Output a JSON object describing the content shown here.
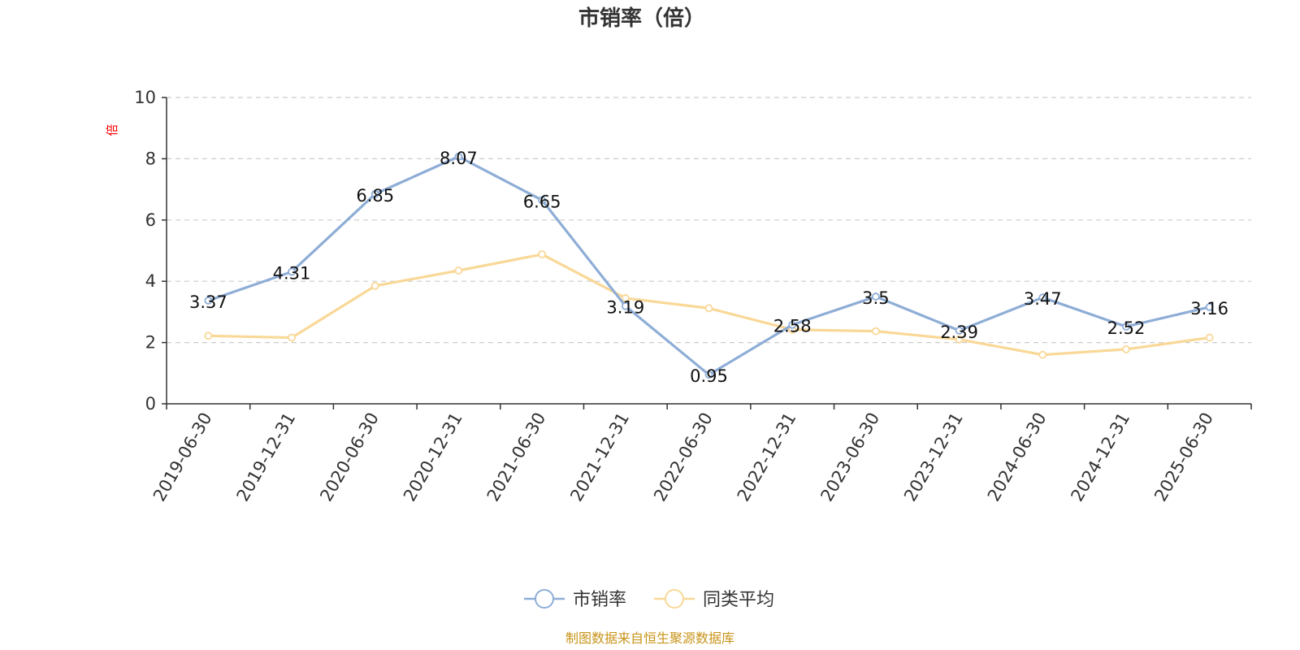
{
  "chart_data": {
    "type": "line",
    "title": "市销率（倍）",
    "y_unit": "倍",
    "xlabel": "",
    "ylabel": "",
    "ylim": [
      0,
      10
    ],
    "y_ticks": [
      0,
      2,
      4,
      6,
      8,
      10
    ],
    "grid": "horizontal dashed",
    "legend_position": "bottom-center",
    "categories": [
      "2019-06-30",
      "2019-12-31",
      "2020-06-30",
      "2020-12-31",
      "2021-06-30",
      "2021-12-31",
      "2022-06-30",
      "2022-12-31",
      "2023-06-30",
      "2023-12-31",
      "2024-06-30",
      "2024-12-31",
      "2025-06-30"
    ],
    "series": [
      {
        "name": "市销率",
        "color": "#8eadd6",
        "show_labels": true,
        "values": [
          3.37,
          4.31,
          6.85,
          8.07,
          6.65,
          3.19,
          0.95,
          2.58,
          3.5,
          2.39,
          3.47,
          2.52,
          3.16
        ]
      },
      {
        "name": "同类平均",
        "color": "#f9d897",
        "show_labels": false,
        "values": [
          2.22,
          2.16,
          3.85,
          4.35,
          4.88,
          3.45,
          3.12,
          2.42,
          2.37,
          2.1,
          1.6,
          1.78,
          2.16
        ]
      }
    ]
  },
  "source": "制图数据来自恒生聚源数据库"
}
